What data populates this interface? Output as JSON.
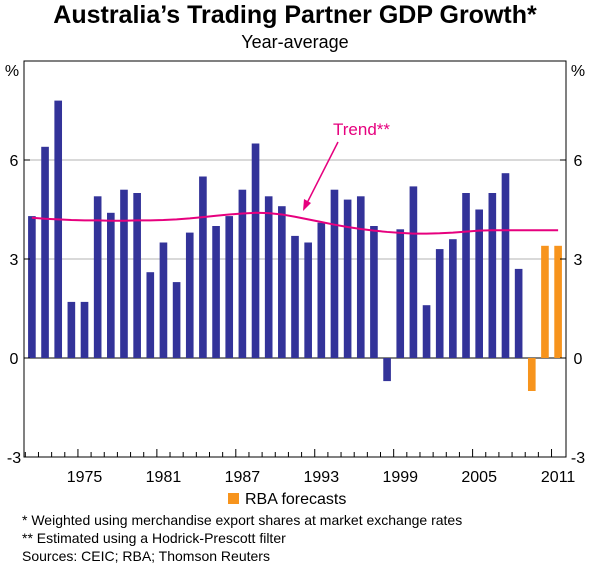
{
  "chart_data": {
    "type": "bar",
    "title": "Australia’s Trading Partner GDP Growth*",
    "subtitle": "Year-average",
    "ylabel_left": "%",
    "ylabel_right": "%",
    "ylim": [
      -3,
      9
    ],
    "yticks": [
      -3,
      0,
      3,
      6
    ],
    "grid": true,
    "xlim": [
      1970.4,
      2011.6
    ],
    "xticks": [
      1975,
      1981,
      1987,
      1993,
      1999,
      2005,
      2011
    ],
    "series": [
      {
        "kind": "bar",
        "color": "#333399",
        "x": [
          1971,
          1972,
          1973,
          1974,
          1975,
          1976,
          1977,
          1978,
          1979,
          1980,
          1981,
          1982,
          1983,
          1984,
          1985,
          1986,
          1987,
          1988,
          1989,
          1990,
          1991,
          1992,
          1993,
          1994,
          1995,
          1996,
          1997,
          1998,
          1999,
          2000,
          2001,
          2002,
          2003,
          2004,
          2005,
          2006,
          2007,
          2008
        ],
        "values": [
          4.3,
          6.4,
          7.8,
          1.7,
          1.7,
          4.9,
          4.4,
          5.1,
          5.0,
          2.6,
          3.5,
          2.3,
          3.8,
          5.5,
          4.0,
          4.3,
          5.1,
          6.5,
          4.9,
          4.6,
          3.7,
          3.5,
          4.1,
          5.1,
          4.8,
          4.9,
          4.0,
          -0.7,
          3.9,
          5.2,
          1.6,
          3.3,
          3.6,
          5.0,
          4.5,
          5.0,
          5.6,
          2.7
        ]
      },
      {
        "kind": "bar",
        "name": "RBA forecasts",
        "color": "#f7941d",
        "x": [
          2009,
          2010,
          2011
        ],
        "values": [
          -1.0,
          3.4,
          3.4
        ]
      },
      {
        "kind": "line",
        "name": "Trend**",
        "color": "#e6007e",
        "x": [
          1971,
          1972,
          1973,
          1974,
          1975,
          1976,
          1977,
          1978,
          1979,
          1980,
          1981,
          1982,
          1983,
          1984,
          1985,
          1986,
          1987,
          1988,
          1989,
          1990,
          1991,
          1992,
          1993,
          1994,
          1995,
          1996,
          1997,
          1998,
          1999,
          2000,
          2001,
          2002,
          2003,
          2004,
          2005,
          2006,
          2007,
          2008,
          2009,
          2010,
          2011
        ],
        "values": [
          4.25,
          4.22,
          4.2,
          4.18,
          4.17,
          4.17,
          4.16,
          4.16,
          4.17,
          4.17,
          4.18,
          4.2,
          4.23,
          4.27,
          4.31,
          4.35,
          4.38,
          4.4,
          4.39,
          4.35,
          4.28,
          4.2,
          4.12,
          4.04,
          3.97,
          3.91,
          3.86,
          3.82,
          3.79,
          3.77,
          3.77,
          3.78,
          3.8,
          3.83,
          3.86,
          3.87,
          3.87,
          3.87,
          3.87,
          3.87,
          3.87
        ]
      }
    ],
    "annotations": [
      {
        "text": "Trend**",
        "color": "#e6007e"
      }
    ],
    "legend": {
      "label": "RBA forecasts",
      "color": "#f7941d",
      "placement": "bottom"
    }
  },
  "notes": [
    "*  Weighted using merchandise export shares at market exchange rates",
    "** Estimated using a Hodrick-Prescott filter",
    "Sources: CEIC; RBA; Thomson Reuters"
  ]
}
